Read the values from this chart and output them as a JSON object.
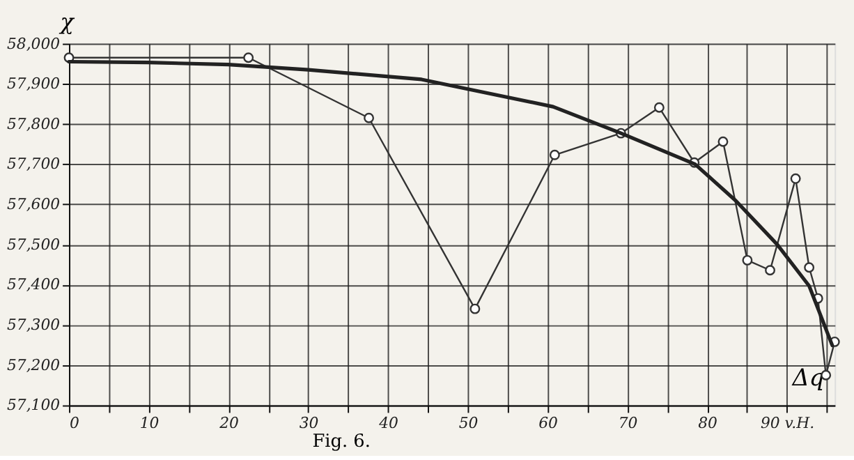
{
  "chart_data": {
    "type": "line",
    "ylabel": "χ",
    "xlabel": "Δq",
    "annotations": [
      "Fig. 6."
    ],
    "xlim": [
      0,
      96
    ],
    "ylim": [
      57100,
      58000
    ],
    "xticks": [
      0,
      {
        "value": 5,
        "label": null
      },
      10,
      {
        "value": 15,
        "label": null
      },
      20,
      {
        "value": 25,
        "label": null
      },
      30,
      {
        "value": 35,
        "label": null
      },
      40,
      {
        "value": 45,
        "label": null
      },
      50,
      {
        "value": 55,
        "label": null
      },
      60,
      {
        "value": 65,
        "label": null
      },
      70,
      {
        "value": 75,
        "label": null
      },
      80,
      {
        "value": 85,
        "label": null
      },
      {
        "value": 90,
        "label": "90 v.H."
      },
      {
        "value": 95,
        "label": null
      }
    ],
    "yticks": [
      {
        "value": 57100,
        "label": "57,100"
      },
      {
        "value": 57200,
        "label": "57,200"
      },
      {
        "value": 57300,
        "label": "57,300"
      },
      {
        "value": 57400,
        "label": "57,400"
      },
      {
        "value": 57500,
        "label": "57,500"
      },
      {
        "value": 57600,
        "label": "57,600"
      },
      {
        "value": 57700,
        "label": "57,700"
      },
      {
        "value": 57800,
        "label": "57,800"
      },
      {
        "value": 57900,
        "label": "57,900"
      },
      {
        "value": 58000,
        "label": "58,000"
      }
    ],
    "grid": true,
    "series": [
      {
        "color": "#333333",
        "marker": "circle",
        "line_style": "solid",
        "x": [
          0,
          22.5,
          37.6,
          50.9,
          60.9,
          69.2,
          74.0,
          78.4,
          82.0,
          85.05,
          87.9,
          91.1,
          92.8,
          93.9,
          94.9,
          96
        ],
        "values": [
          57965,
          57965,
          57815,
          57340,
          57723,
          57777,
          57841,
          57704,
          57756,
          57461,
          57436,
          57664,
          57443,
          57366,
          57175,
          57258
        ]
      },
      {
        "color": "#222222",
        "marker": "none",
        "line_style": "solid",
        "x": [
          0,
          10,
          20,
          30,
          44.2,
          60.7,
          69.2,
          78.5,
          83.6,
          88.8,
          92.8,
          95.7
        ],
        "values": [
          57955,
          57953,
          57948,
          57935,
          57911,
          57843,
          57777,
          57700,
          57609,
          57500,
          57397,
          57249
        ]
      }
    ]
  }
}
